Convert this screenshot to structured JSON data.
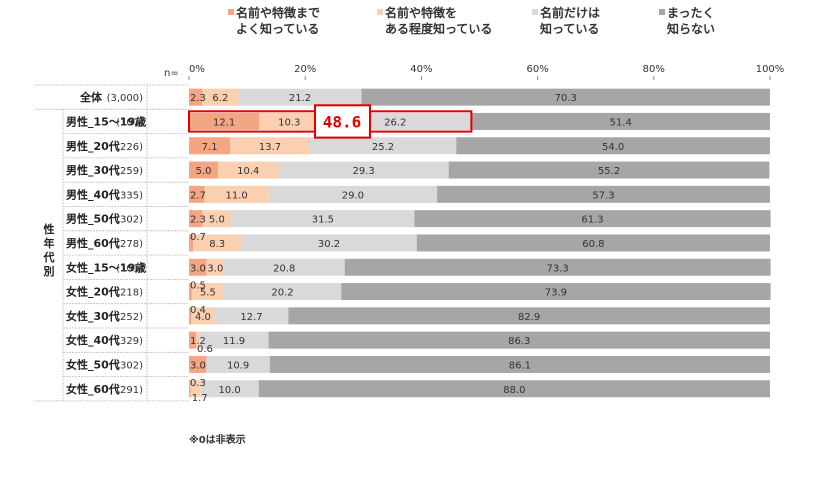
{
  "chart_data": {
    "type": "bar",
    "orientation": "horizontal",
    "stacked": true,
    "title": "",
    "xlim": [
      0,
      100
    ],
    "x_ticks": [
      "0%",
      "20%",
      "40%",
      "60%",
      "80%",
      "100%"
    ],
    "n_header": "n=",
    "group_label": "性年代別",
    "note": "※0は非表示",
    "highlight": {
      "row": 1,
      "value": "48.6"
    },
    "legend": [
      {
        "name": "名前や特徴まで\nよく知っている",
        "color": "#f4a582"
      },
      {
        "name": "名前や特徴を\nある程度知っている",
        "color": "#fbd0b0"
      },
      {
        "name": "名前だけは\n知っている",
        "color": "#d9d9d9"
      },
      {
        "name": "まったく\n知らない",
        "color": "#a6a6a6"
      }
    ],
    "rows": [
      {
        "label": "全体",
        "n": "(3,000)",
        "values": [
          2.3,
          6.2,
          21.2,
          70.3
        ],
        "labels": [
          "2.3",
          "6.2",
          "21.2",
          "70.3"
        ]
      },
      {
        "label": "男性_15～19歳",
        "n": "(107)",
        "values": [
          12.1,
          10.3,
          26.2,
          51.4
        ],
        "labels": [
          "12.1",
          "10.3",
          "26.2",
          "51.4"
        ]
      },
      {
        "label": "男性_20代",
        "n": "(226)",
        "values": [
          7.1,
          13.7,
          25.2,
          54.0
        ],
        "labels": [
          "7.1",
          "13.7",
          "25.2",
          "54.0"
        ]
      },
      {
        "label": "男性_30代",
        "n": "(259)",
        "values": [
          5.0,
          10.4,
          29.3,
          55.2
        ],
        "labels": [
          "5.0",
          "10.4",
          "29.3",
          "55.2"
        ]
      },
      {
        "label": "男性_40代",
        "n": "(335)",
        "values": [
          2.7,
          11.0,
          29.0,
          57.3
        ],
        "labels": [
          "2.7",
          "11.0",
          "29.0",
          "57.3"
        ]
      },
      {
        "label": "男性_50代",
        "n": "(302)",
        "values": [
          2.3,
          5.0,
          31.5,
          61.3
        ],
        "labels": [
          "2.3",
          "5.0",
          "31.5",
          "61.3"
        ]
      },
      {
        "label": "男性_60代",
        "n": "(278)",
        "values": [
          0.7,
          8.3,
          30.2,
          60.8
        ],
        "labels": [
          "0.7",
          "8.3",
          "30.2",
          "60.8"
        ]
      },
      {
        "label": "女性_15～19歳",
        "n": "(101)",
        "values": [
          3.0,
          3.0,
          20.8,
          73.3
        ],
        "labels": [
          "3.0",
          "3.0",
          "20.8",
          "73.3"
        ]
      },
      {
        "label": "女性_20代",
        "n": "(218)",
        "values": [
          0.5,
          5.5,
          20.2,
          73.9
        ],
        "labels": [
          "0.5",
          "5.5",
          "20.2",
          "73.9"
        ]
      },
      {
        "label": "女性_30代",
        "n": "(252)",
        "values": [
          0.4,
          4.0,
          12.7,
          82.9
        ],
        "labels": [
          "0.4",
          "4.0",
          "12.7",
          "82.9"
        ]
      },
      {
        "label": "女性_40代",
        "n": "(329)",
        "values": [
          1.2,
          0.6,
          11.9,
          86.3
        ],
        "labels": [
          "1.2",
          "0.6",
          "11.9",
          "86.3"
        ]
      },
      {
        "label": "女性_50代",
        "n": "(302)",
        "values": [
          3.0,
          0,
          10.9,
          86.1
        ],
        "labels": [
          "3.0",
          "",
          "10.9",
          "86.1"
        ]
      },
      {
        "label": "女性_60代",
        "n": "(291)",
        "values": [
          0.3,
          1.7,
          10.0,
          88.0
        ],
        "labels": [
          "0.3",
          "1.7",
          "10.0",
          "88.0"
        ]
      }
    ]
  }
}
